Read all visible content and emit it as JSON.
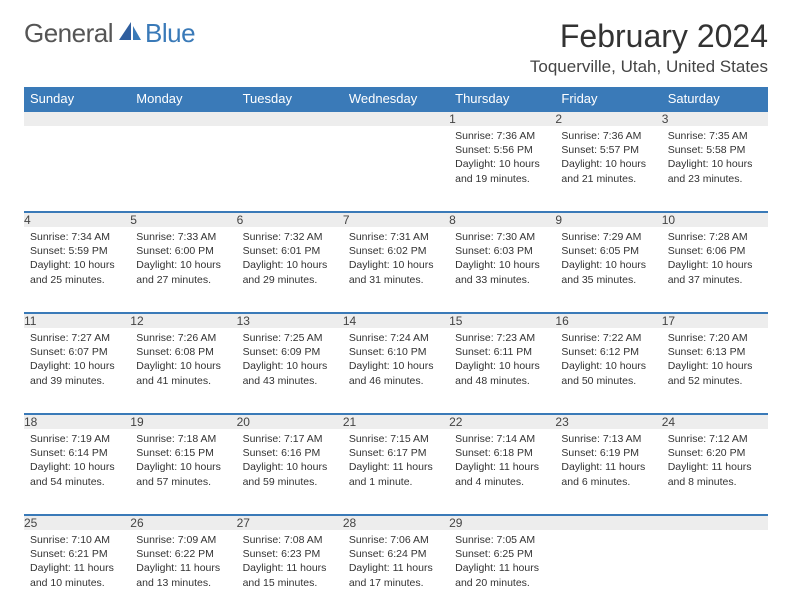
{
  "brand": {
    "part1": "General",
    "part2": "Blue"
  },
  "title": "February 2024",
  "location": "Toquerville, Utah, United States",
  "colors": {
    "accent": "#3a7ab8",
    "header_bg": "#ededed"
  },
  "weekdays": [
    "Sunday",
    "Monday",
    "Tuesday",
    "Wednesday",
    "Thursday",
    "Friday",
    "Saturday"
  ],
  "weeks": [
    {
      "nums": [
        "",
        "",
        "",
        "",
        "1",
        "2",
        "3"
      ],
      "cells": [
        null,
        null,
        null,
        null,
        {
          "sunrise": "Sunrise: 7:36 AM",
          "sunset": "Sunset: 5:56 PM",
          "day1": "Daylight: 10 hours",
          "day2": "and 19 minutes."
        },
        {
          "sunrise": "Sunrise: 7:36 AM",
          "sunset": "Sunset: 5:57 PM",
          "day1": "Daylight: 10 hours",
          "day2": "and 21 minutes."
        },
        {
          "sunrise": "Sunrise: 7:35 AM",
          "sunset": "Sunset: 5:58 PM",
          "day1": "Daylight: 10 hours",
          "day2": "and 23 minutes."
        }
      ]
    },
    {
      "nums": [
        "4",
        "5",
        "6",
        "7",
        "8",
        "9",
        "10"
      ],
      "cells": [
        {
          "sunrise": "Sunrise: 7:34 AM",
          "sunset": "Sunset: 5:59 PM",
          "day1": "Daylight: 10 hours",
          "day2": "and 25 minutes."
        },
        {
          "sunrise": "Sunrise: 7:33 AM",
          "sunset": "Sunset: 6:00 PM",
          "day1": "Daylight: 10 hours",
          "day2": "and 27 minutes."
        },
        {
          "sunrise": "Sunrise: 7:32 AM",
          "sunset": "Sunset: 6:01 PM",
          "day1": "Daylight: 10 hours",
          "day2": "and 29 minutes."
        },
        {
          "sunrise": "Sunrise: 7:31 AM",
          "sunset": "Sunset: 6:02 PM",
          "day1": "Daylight: 10 hours",
          "day2": "and 31 minutes."
        },
        {
          "sunrise": "Sunrise: 7:30 AM",
          "sunset": "Sunset: 6:03 PM",
          "day1": "Daylight: 10 hours",
          "day2": "and 33 minutes."
        },
        {
          "sunrise": "Sunrise: 7:29 AM",
          "sunset": "Sunset: 6:05 PM",
          "day1": "Daylight: 10 hours",
          "day2": "and 35 minutes."
        },
        {
          "sunrise": "Sunrise: 7:28 AM",
          "sunset": "Sunset: 6:06 PM",
          "day1": "Daylight: 10 hours",
          "day2": "and 37 minutes."
        }
      ]
    },
    {
      "nums": [
        "11",
        "12",
        "13",
        "14",
        "15",
        "16",
        "17"
      ],
      "cells": [
        {
          "sunrise": "Sunrise: 7:27 AM",
          "sunset": "Sunset: 6:07 PM",
          "day1": "Daylight: 10 hours",
          "day2": "and 39 minutes."
        },
        {
          "sunrise": "Sunrise: 7:26 AM",
          "sunset": "Sunset: 6:08 PM",
          "day1": "Daylight: 10 hours",
          "day2": "and 41 minutes."
        },
        {
          "sunrise": "Sunrise: 7:25 AM",
          "sunset": "Sunset: 6:09 PM",
          "day1": "Daylight: 10 hours",
          "day2": "and 43 minutes."
        },
        {
          "sunrise": "Sunrise: 7:24 AM",
          "sunset": "Sunset: 6:10 PM",
          "day1": "Daylight: 10 hours",
          "day2": "and 46 minutes."
        },
        {
          "sunrise": "Sunrise: 7:23 AM",
          "sunset": "Sunset: 6:11 PM",
          "day1": "Daylight: 10 hours",
          "day2": "and 48 minutes."
        },
        {
          "sunrise": "Sunrise: 7:22 AM",
          "sunset": "Sunset: 6:12 PM",
          "day1": "Daylight: 10 hours",
          "day2": "and 50 minutes."
        },
        {
          "sunrise": "Sunrise: 7:20 AM",
          "sunset": "Sunset: 6:13 PM",
          "day1": "Daylight: 10 hours",
          "day2": "and 52 minutes."
        }
      ]
    },
    {
      "nums": [
        "18",
        "19",
        "20",
        "21",
        "22",
        "23",
        "24"
      ],
      "cells": [
        {
          "sunrise": "Sunrise: 7:19 AM",
          "sunset": "Sunset: 6:14 PM",
          "day1": "Daylight: 10 hours",
          "day2": "and 54 minutes."
        },
        {
          "sunrise": "Sunrise: 7:18 AM",
          "sunset": "Sunset: 6:15 PM",
          "day1": "Daylight: 10 hours",
          "day2": "and 57 minutes."
        },
        {
          "sunrise": "Sunrise: 7:17 AM",
          "sunset": "Sunset: 6:16 PM",
          "day1": "Daylight: 10 hours",
          "day2": "and 59 minutes."
        },
        {
          "sunrise": "Sunrise: 7:15 AM",
          "sunset": "Sunset: 6:17 PM",
          "day1": "Daylight: 11 hours",
          "day2": "and 1 minute."
        },
        {
          "sunrise": "Sunrise: 7:14 AM",
          "sunset": "Sunset: 6:18 PM",
          "day1": "Daylight: 11 hours",
          "day2": "and 4 minutes."
        },
        {
          "sunrise": "Sunrise: 7:13 AM",
          "sunset": "Sunset: 6:19 PM",
          "day1": "Daylight: 11 hours",
          "day2": "and 6 minutes."
        },
        {
          "sunrise": "Sunrise: 7:12 AM",
          "sunset": "Sunset: 6:20 PM",
          "day1": "Daylight: 11 hours",
          "day2": "and 8 minutes."
        }
      ]
    },
    {
      "nums": [
        "25",
        "26",
        "27",
        "28",
        "29",
        "",
        ""
      ],
      "cells": [
        {
          "sunrise": "Sunrise: 7:10 AM",
          "sunset": "Sunset: 6:21 PM",
          "day1": "Daylight: 11 hours",
          "day2": "and 10 minutes."
        },
        {
          "sunrise": "Sunrise: 7:09 AM",
          "sunset": "Sunset: 6:22 PM",
          "day1": "Daylight: 11 hours",
          "day2": "and 13 minutes."
        },
        {
          "sunrise": "Sunrise: 7:08 AM",
          "sunset": "Sunset: 6:23 PM",
          "day1": "Daylight: 11 hours",
          "day2": "and 15 minutes."
        },
        {
          "sunrise": "Sunrise: 7:06 AM",
          "sunset": "Sunset: 6:24 PM",
          "day1": "Daylight: 11 hours",
          "day2": "and 17 minutes."
        },
        {
          "sunrise": "Sunrise: 7:05 AM",
          "sunset": "Sunset: 6:25 PM",
          "day1": "Daylight: 11 hours",
          "day2": "and 20 minutes."
        },
        null,
        null
      ]
    }
  ]
}
